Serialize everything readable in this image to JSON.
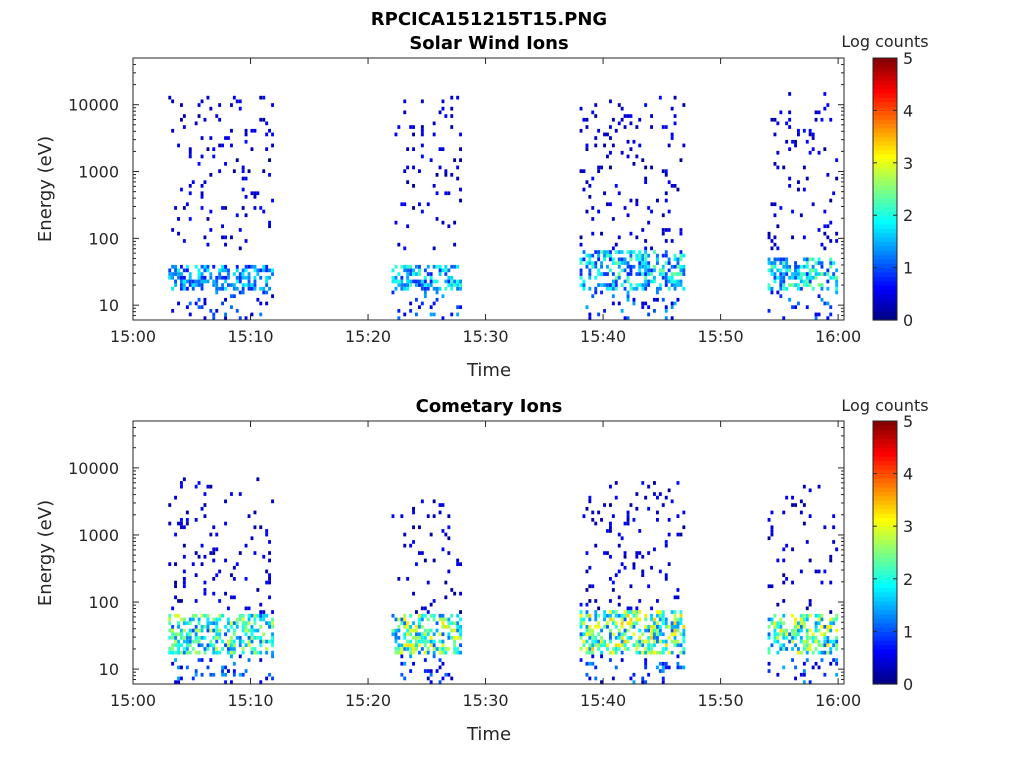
{
  "figure_title": "RPCICA151215T15.PNG",
  "chart_data": [
    {
      "type": "heatmap",
      "title": "Solar Wind Ions",
      "xlabel": "Time",
      "ylabel": "Energy (eV)",
      "x_tick_labels": [
        "15:00",
        "15:10",
        "15:20",
        "15:30",
        "15:40",
        "15:50",
        "16:00"
      ],
      "x_range_minutes": [
        0,
        60.5
      ],
      "y_scale": "log",
      "y_range": [
        6,
        50000
      ],
      "y_tick_values": [
        10,
        100,
        1000,
        10000
      ],
      "y_tick_labels": [
        "10",
        "100",
        "1000",
        "10000"
      ],
      "colorbar": {
        "label": "Log counts",
        "range": [
          0,
          5
        ],
        "ticks": [
          "0",
          "1",
          "2",
          "3",
          "4",
          "5"
        ],
        "colormap": "jet"
      },
      "active_intervals": [
        {
          "start": "15:03",
          "end": "15:12",
          "core_energy": [
            15,
            40
          ],
          "core_log_counts": 1.8,
          "sparse_energy": [
            60,
            12000
          ]
        },
        {
          "start": "15:22",
          "end": "15:28",
          "core_energy": [
            15,
            40
          ],
          "core_log_counts": 2.0,
          "sparse_energy": [
            60,
            12000
          ]
        },
        {
          "start": "15:38",
          "end": "15:47",
          "core_energy": [
            15,
            60
          ],
          "core_log_counts": 2.2,
          "sparse_energy": [
            60,
            12000
          ]
        },
        {
          "start": "15:54",
          "end": "16:00",
          "core_energy": [
            15,
            50
          ],
          "core_log_counts": 2.3,
          "sparse_energy": [
            60,
            15000
          ]
        }
      ]
    },
    {
      "type": "heatmap",
      "title": "Cometary Ions",
      "xlabel": "Time",
      "ylabel": "Energy (eV)",
      "x_tick_labels": [
        "15:00",
        "15:10",
        "15:20",
        "15:30",
        "15:40",
        "15:50",
        "16:00"
      ],
      "x_range_minutes": [
        0,
        60.5
      ],
      "y_scale": "log",
      "y_range": [
        6,
        50000
      ],
      "y_tick_values": [
        10,
        100,
        1000,
        10000
      ],
      "y_tick_labels": [
        "10",
        "100",
        "1000",
        "10000"
      ],
      "colorbar": {
        "label": "Log counts",
        "range": [
          0,
          5
        ],
        "ticks": [
          "0",
          "1",
          "2",
          "3",
          "4",
          "5"
        ],
        "colormap": "jet"
      },
      "active_intervals": [
        {
          "start": "15:03",
          "end": "15:12",
          "core_energy": [
            15,
            60
          ],
          "core_log_counts": 2.7,
          "sparse_energy": [
            60,
            7000
          ]
        },
        {
          "start": "15:22",
          "end": "15:28",
          "core_energy": [
            15,
            60
          ],
          "core_log_counts": 3.0,
          "sparse_energy": [
            60,
            3000
          ]
        },
        {
          "start": "15:38",
          "end": "15:47",
          "core_energy": [
            15,
            70
          ],
          "core_log_counts": 3.1,
          "sparse_energy": [
            60,
            6000
          ]
        },
        {
          "start": "15:54",
          "end": "16:00",
          "core_energy": [
            15,
            60
          ],
          "core_log_counts": 3.0,
          "sparse_energy": [
            60,
            5000
          ]
        }
      ]
    }
  ]
}
